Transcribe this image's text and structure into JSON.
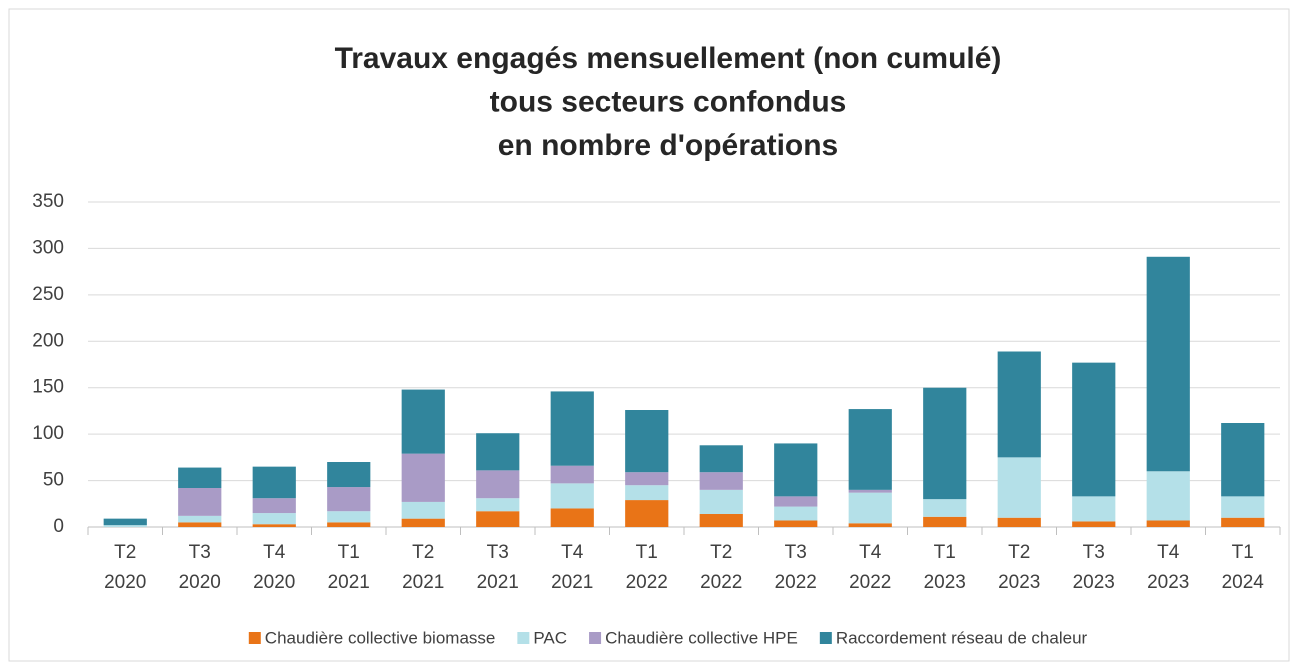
{
  "chart_data": {
    "type": "bar",
    "stacked": true,
    "title": [
      "Travaux engagés mensuellement (non cumulé)",
      "tous secteurs confondus",
      "en nombre d'opérations"
    ],
    "categories": [
      [
        "T2",
        "2020"
      ],
      [
        "T3",
        "2020"
      ],
      [
        "T4",
        "2020"
      ],
      [
        "T1",
        "2021"
      ],
      [
        "T2",
        "2021"
      ],
      [
        "T3",
        "2021"
      ],
      [
        "T4",
        "2021"
      ],
      [
        "T1",
        "2022"
      ],
      [
        "T2",
        "2022"
      ],
      [
        "T3",
        "2022"
      ],
      [
        "T4",
        "2022"
      ],
      [
        "T1",
        "2023"
      ],
      [
        "T2",
        "2023"
      ],
      [
        "T3",
        "2023"
      ],
      [
        "T4",
        "2023"
      ],
      [
        "T1",
        "2024"
      ]
    ],
    "series": [
      {
        "name": "Chaudière collective biomasse",
        "color": "#e97417",
        "values": [
          0,
          5,
          3,
          5,
          9,
          17,
          20,
          29,
          14,
          7,
          4,
          11,
          10,
          6,
          7,
          10
        ]
      },
      {
        "name": "PAC",
        "color": "#b4e0e8",
        "values": [
          2,
          7,
          12,
          12,
          18,
          14,
          27,
          16,
          26,
          15,
          33,
          19,
          65,
          27,
          53,
          23
        ]
      },
      {
        "name": "Chaudière collective HPE",
        "color": "#a99bc6",
        "values": [
          0,
          30,
          16,
          26,
          52,
          30,
          19,
          14,
          19,
          11,
          3,
          0,
          0,
          0,
          0,
          0
        ]
      },
      {
        "name": "Raccordement réseau de chaleur",
        "color": "#31859c",
        "values": [
          7,
          22,
          34,
          27,
          69,
          40,
          80,
          67,
          29,
          57,
          87,
          120,
          114,
          144,
          231,
          79
        ]
      }
    ],
    "ylim": [
      0,
      350
    ],
    "yticks": [
      0,
      50,
      100,
      150,
      200,
      250,
      300,
      350
    ],
    "grid": true,
    "legend": "bottom"
  }
}
